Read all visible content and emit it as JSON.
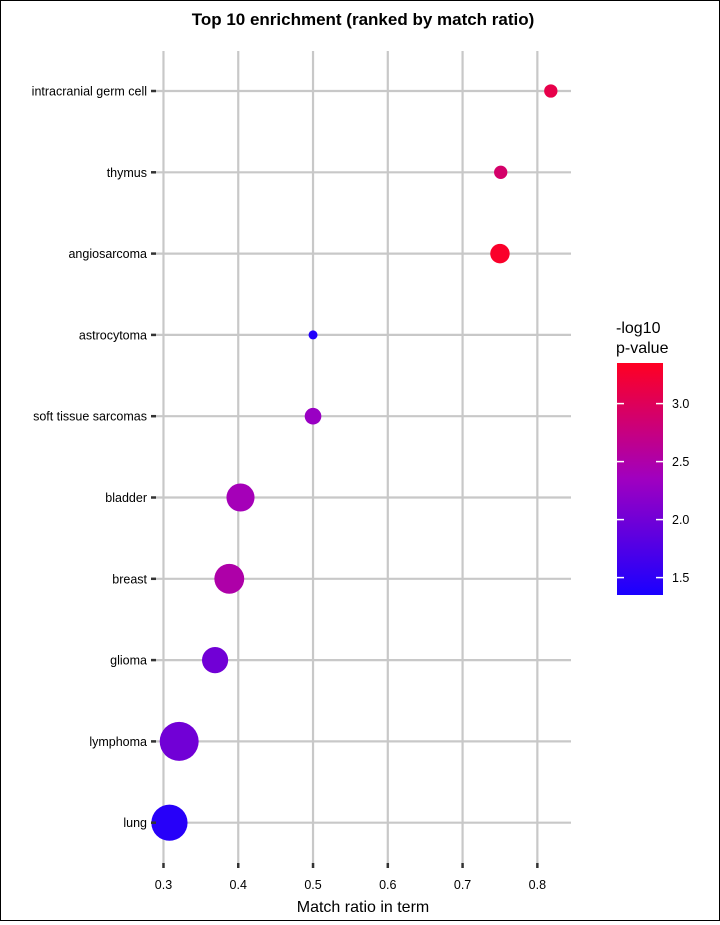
{
  "chart_data": {
    "type": "scatter",
    "title": "Top 10 enrichment (ranked by match ratio)",
    "xlabel": "Match ratio in term",
    "ylabel": "",
    "xlim": [
      0.29,
      0.845
    ],
    "xticks": [
      0.3,
      0.4,
      0.5,
      0.6,
      0.7,
      0.8
    ],
    "xtick_labels": [
      "0.3",
      "0.4",
      "0.5",
      "0.6",
      "0.7",
      "0.8"
    ],
    "grid": true,
    "legend_position": "right",
    "legend": {
      "title_lines": [
        "-log10",
        "p-value"
      ],
      "range": [
        1.35,
        3.35
      ],
      "ticks": [
        1.5,
        2.0,
        2.5,
        3.0
      ],
      "tick_labels": [
        "1.5",
        "2.0",
        "2.5",
        "3.0"
      ],
      "color_low": "#1a00ff",
      "color_mid": "#a000c0",
      "color_high": "#ff0022"
    },
    "categories": [
      "intracranial germ cell",
      "thymus",
      "angiosarcoma",
      "astrocytoma",
      "soft tissue sarcomas",
      "bladder",
      "breast",
      "glioma",
      "lymphoma",
      "lung"
    ],
    "points": [
      {
        "category": "intracranial germ cell",
        "x": 0.818,
        "neglog10p": 3.1,
        "size": 2
      },
      {
        "category": "thymus",
        "x": 0.751,
        "neglog10p": 2.9,
        "size": 2
      },
      {
        "category": "angiosarcoma",
        "x": 0.75,
        "neglog10p": 3.3,
        "size": 4
      },
      {
        "category": "astrocytoma",
        "x": 0.5,
        "neglog10p": 1.4,
        "size": 1
      },
      {
        "category": "soft tissue sarcomas",
        "x": 0.5,
        "neglog10p": 2.3,
        "size": 3
      },
      {
        "category": "bladder",
        "x": 0.403,
        "neglog10p": 2.4,
        "size": 8
      },
      {
        "category": "breast",
        "x": 0.388,
        "neglog10p": 2.5,
        "size": 9
      },
      {
        "category": "glioma",
        "x": 0.369,
        "neglog10p": 2.0,
        "size": 7
      },
      {
        "category": "lymphoma",
        "x": 0.321,
        "neglog10p": 2.0,
        "size": 15
      },
      {
        "category": "lung",
        "x": 0.308,
        "neglog10p": 1.45,
        "size": 13
      }
    ]
  }
}
